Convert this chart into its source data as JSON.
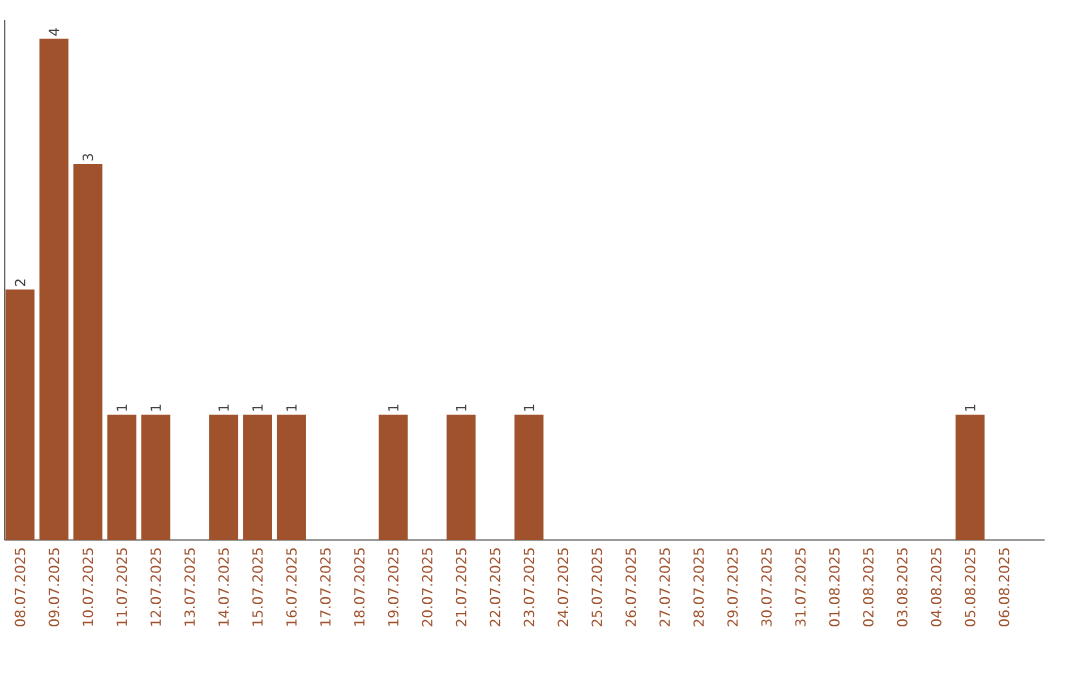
{
  "chart_data": {
    "type": "bar",
    "categories": [
      "08.07.2025",
      "09.07.2025",
      "10.07.2025",
      "11.07.2025",
      "12.07.2025",
      "13.07.2025",
      "14.07.2025",
      "15.07.2025",
      "16.07.2025",
      "17.07.2025",
      "18.07.2025",
      "19.07.2025",
      "20.07.2025",
      "21.07.2025",
      "22.07.2025",
      "23.07.2025",
      "24.07.2025",
      "25.07.2025",
      "26.07.2025",
      "27.07.2025",
      "28.07.2025",
      "29.07.2025",
      "30.07.2025",
      "31.07.2025",
      "01.08.2025",
      "02.08.2025",
      "03.08.2025",
      "04.08.2025",
      "05.08.2025",
      "06.08.2025"
    ],
    "values": [
      2,
      4,
      3,
      1,
      1,
      0,
      1,
      1,
      1,
      0,
      0,
      1,
      0,
      1,
      0,
      1,
      0,
      0,
      0,
      0,
      0,
      0,
      0,
      0,
      0,
      0,
      0,
      0,
      1,
      0
    ],
    "value_labels": [
      "2",
      "4",
      "3",
      "1",
      "1",
      null,
      "1",
      "1",
      "1",
      null,
      null,
      "1",
      null,
      "1",
      null,
      "1",
      null,
      null,
      null,
      null,
      null,
      null,
      null,
      null,
      null,
      null,
      null,
      null,
      "1",
      null
    ],
    "color": "#a0522d",
    "ylim": [
      0,
      4.15
    ],
    "tick_labels": "x"
  }
}
